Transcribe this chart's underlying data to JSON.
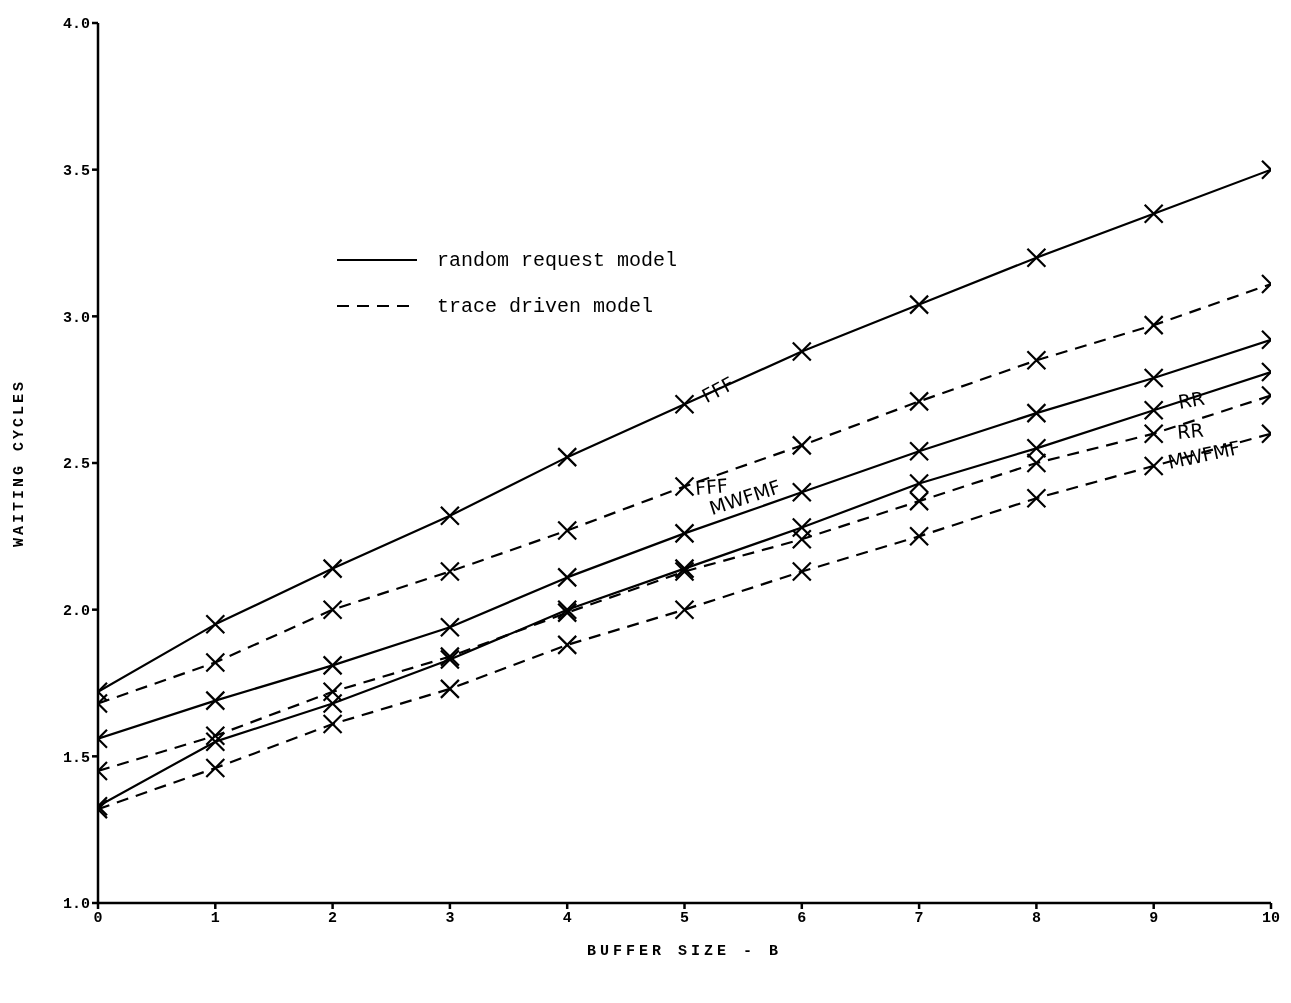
{
  "chart_data": {
    "type": "line",
    "xlabel": "BUFFER SIZE - B",
    "ylabel": "WAITING CYCLES",
    "x": [
      0,
      1,
      2,
      3,
      4,
      5,
      6,
      7,
      8,
      9,
      10
    ],
    "xlim": [
      0,
      10
    ],
    "xticks": [
      0,
      1,
      2,
      3,
      4,
      5,
      6,
      7,
      8,
      9,
      10
    ],
    "ylim": [
      1.0,
      4.0
    ],
    "yticks": [
      {
        "value": 1,
        "label": "1.0"
      },
      {
        "value": 1.5,
        "label": "1.5"
      },
      {
        "value": 2,
        "label": "2.0"
      },
      {
        "value": 2.5,
        "label": "2.5"
      },
      {
        "value": 3,
        "label": "3.0"
      },
      {
        "value": 3.5,
        "label": "3.5"
      },
      {
        "value": 4,
        "label": "4.0"
      }
    ],
    "grid": false,
    "legend": "top left",
    "marker": "cross",
    "series": [
      {
        "name": "random request model",
        "color": "#000000",
        "line_style": "solid",
        "values": [
          1.72,
          1.95,
          2.14,
          2.32,
          2.52,
          2.7,
          2.88,
          3.04,
          3.2,
          3.35,
          3.5
        ]
      },
      {
        "name": "trace driven model",
        "color": "#000000",
        "line_style": "dashed",
        "values": [
          1.68,
          1.82,
          2.0,
          2.13,
          2.27,
          2.42,
          2.56,
          2.71,
          2.85,
          2.97,
          3.11
        ]
      },
      {
        "color": "#000000",
        "line_style": "solid",
        "values": [
          1.56,
          1.69,
          1.81,
          1.94,
          2.11,
          2.26,
          2.4,
          2.54,
          2.67,
          2.79,
          2.92
        ]
      },
      {
        "color": "#000000",
        "line_style": "solid",
        "values": [
          1.33,
          1.55,
          1.68,
          1.83,
          2.0,
          2.14,
          2.28,
          2.43,
          2.55,
          2.68,
          2.81
        ]
      },
      {
        "color": "#000000",
        "line_style": "dashed",
        "values": [
          1.45,
          1.57,
          1.72,
          1.84,
          1.99,
          2.13,
          2.24,
          2.37,
          2.5,
          2.6,
          2.73
        ]
      },
      {
        "color": "#000000",
        "line_style": "dashed",
        "values": [
          1.32,
          1.46,
          1.61,
          1.73,
          1.88,
          2.0,
          2.13,
          2.25,
          2.38,
          2.49,
          2.6
        ]
      }
    ],
    "annotations": [
      "FFF",
      "FFF",
      "MWFMF",
      "RR",
      "RR",
      "MWFMF"
    ]
  }
}
